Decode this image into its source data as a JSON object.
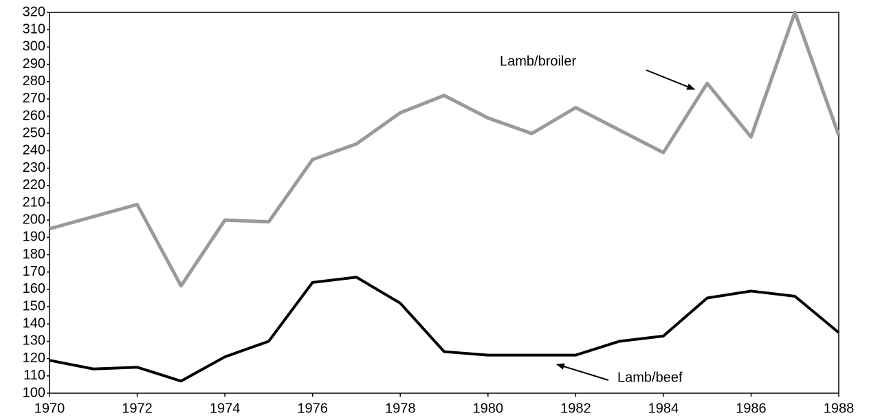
{
  "chart_data": {
    "type": "line",
    "x": [
      1970,
      1971,
      1972,
      1973,
      1974,
      1975,
      1976,
      1977,
      1978,
      1979,
      1980,
      1981,
      1982,
      1983,
      1984,
      1985,
      1986,
      1987,
      1988
    ],
    "series": [
      {
        "name": "Lamb/broiler",
        "color": "#9a9a9a",
        "values": [
          195,
          202,
          209,
          162,
          200,
          199,
          235,
          244,
          262,
          272,
          259,
          250,
          265,
          252,
          239,
          279,
          248,
          320,
          249
        ]
      },
      {
        "name": "Lamb/beef",
        "color": "#000000",
        "values": [
          119,
          114,
          115,
          107,
          121,
          130,
          164,
          167,
          152,
          124,
          122,
          122,
          122,
          130,
          133,
          155,
          159,
          156,
          135
        ]
      }
    ],
    "xlim": [
      1970,
      1988
    ],
    "xticks": [
      1970,
      1972,
      1974,
      1976,
      1978,
      1980,
      1982,
      1984,
      1986,
      1988
    ],
    "ylim": [
      100,
      320
    ],
    "yticks": [
      100,
      110,
      120,
      130,
      140,
      150,
      160,
      170,
      180,
      190,
      200,
      210,
      220,
      230,
      240,
      250,
      260,
      270,
      280,
      290,
      300,
      310,
      320
    ]
  }
}
